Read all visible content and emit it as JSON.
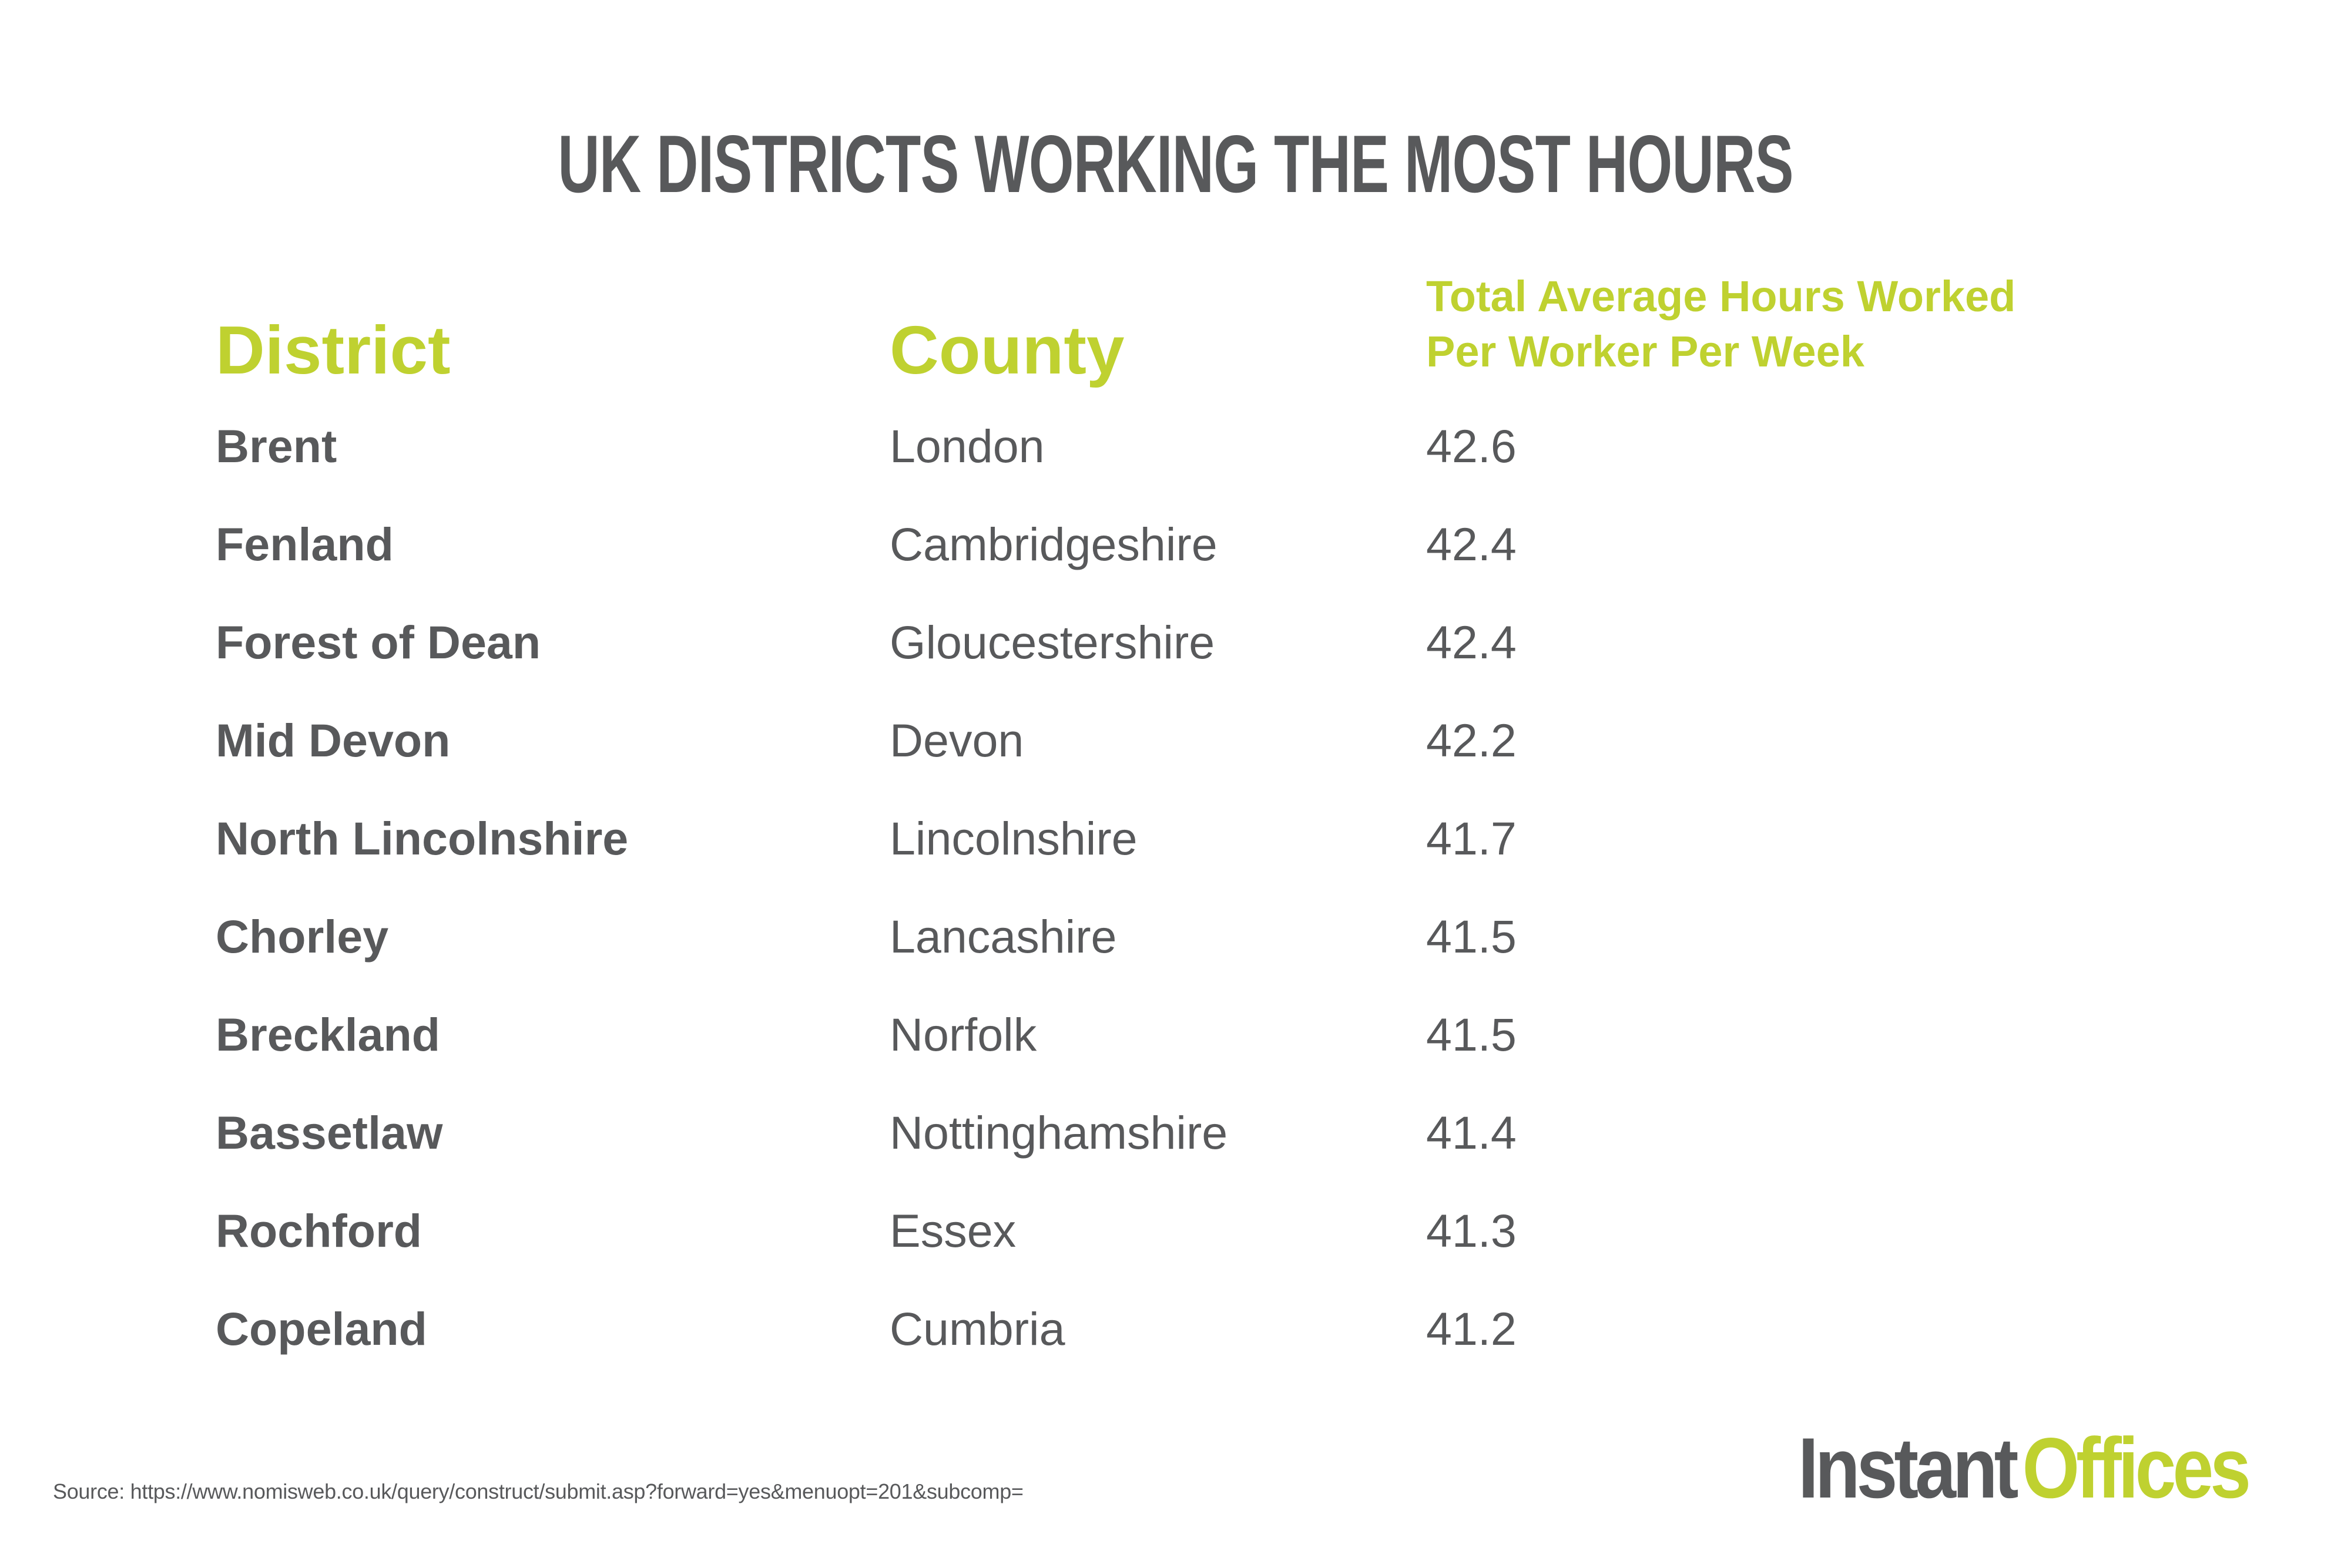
{
  "title": "UK DISTRICTS WORKING THE MOST HOURS",
  "table": {
    "headers": {
      "district": "District",
      "county": "County",
      "hours_line1": "Total Average Hours Worked",
      "hours_line2": "Per Worker Per Week"
    },
    "rows": [
      {
        "district": "Brent",
        "county": "London",
        "hours": "42.6"
      },
      {
        "district": "Fenland",
        "county": "Cambridgeshire",
        "hours": "42.4"
      },
      {
        "district": "Forest of Dean",
        "county": "Gloucestershire",
        "hours": "42.4"
      },
      {
        "district": "Mid Devon",
        "county": "Devon",
        "hours": "42.2"
      },
      {
        "district": "North Lincolnshire",
        "county": "Lincolnshire",
        "hours": "41.7"
      },
      {
        "district": "Chorley",
        "county": "Lancashire",
        "hours": "41.5"
      },
      {
        "district": "Breckland",
        "county": "Norfolk",
        "hours": "41.5"
      },
      {
        "district": "Bassetlaw",
        "county": "Nottinghamshire",
        "hours": "41.4"
      },
      {
        "district": "Rochford",
        "county": "Essex",
        "hours": "41.3"
      },
      {
        "district": "Copeland",
        "county": "Cumbria",
        "hours": "41.2"
      }
    ]
  },
  "source": "Source: https://www.nomisweb.co.uk/query/construct/submit.asp?forward=yes&menuopt=201&subcomp=",
  "logo": {
    "part1": "Instant",
    "part2": "Offices"
  },
  "colors": {
    "accent": "#bfd130",
    "text": "#58595b",
    "background": "#ffffff"
  }
}
